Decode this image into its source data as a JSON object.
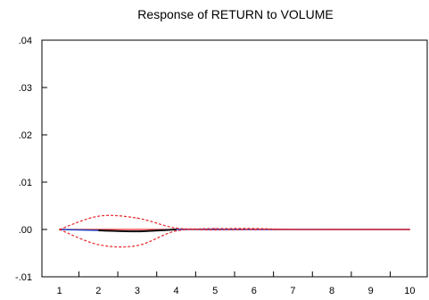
{
  "chart_data": {
    "type": "line",
    "title": "Response of RETURN to VOLUME",
    "xlabel": "",
    "ylabel": "",
    "x": [
      1,
      2,
      3,
      4,
      5,
      6,
      7,
      8,
      9,
      10
    ],
    "x_tick_labels": [
      "1",
      "2",
      "3",
      "4",
      "5",
      "6",
      "7",
      "8",
      "9",
      "10"
    ],
    "xlim": [
      0.55,
      10.45
    ],
    "ylim": [
      -0.01,
      0.04
    ],
    "y_ticks": [
      -0.01,
      0.0,
      0.01,
      0.02,
      0.03,
      0.04
    ],
    "y_tick_labels": [
      "-.01",
      ".00",
      ".01",
      ".02",
      ".03",
      ".04"
    ],
    "grid": false,
    "legend": "none",
    "series": [
      {
        "role": "response",
        "style": "solid",
        "color": "#1f3fbf",
        "values": [
          0.0,
          -0.0002,
          -0.0004,
          0.0,
          0.0,
          0.0,
          0.0,
          0.0,
          0.0,
          0.0
        ]
      },
      {
        "role": "upper-band",
        "style": "dashed",
        "color": "#e8272a",
        "values": [
          0.0,
          0.0028,
          0.0024,
          0.0003,
          0.0002,
          0.0002,
          0.0,
          0.0,
          0.0,
          0.0
        ]
      },
      {
        "role": "lower-band",
        "style": "dashed",
        "color": "#e8272a",
        "values": [
          0.0,
          -0.0032,
          -0.0034,
          -0.0003,
          -0.0001,
          0.0,
          0.0,
          0.0,
          0.0,
          0.0
        ]
      }
    ],
    "zero_line_color": "#e8272a"
  }
}
